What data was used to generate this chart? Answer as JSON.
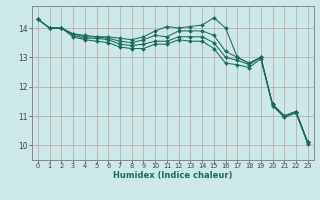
{
  "background_color": "#cce8e8",
  "grid_color": "#bb9999",
  "line_color": "#1a6b5a",
  "xlabel": "Humidex (Indice chaleur)",
  "xlim": [
    -0.5,
    23.5
  ],
  "ylim": [
    9.5,
    14.75
  ],
  "yticks": [
    10,
    11,
    12,
    13,
    14
  ],
  "xticks": [
    0,
    1,
    2,
    3,
    4,
    5,
    6,
    7,
    8,
    9,
    10,
    11,
    12,
    13,
    14,
    15,
    16,
    17,
    18,
    19,
    20,
    21,
    22,
    23
  ],
  "series": [
    [
      14.3,
      14.0,
      14.0,
      13.8,
      13.75,
      13.7,
      13.7,
      13.65,
      13.6,
      13.7,
      13.9,
      14.05,
      14.0,
      14.05,
      14.1,
      14.35,
      14.0,
      13.0,
      12.8,
      13.0,
      11.4,
      11.0,
      11.15,
      10.1
    ],
    [
      14.3,
      14.0,
      14.0,
      13.8,
      13.7,
      13.7,
      13.65,
      13.55,
      13.5,
      13.6,
      13.75,
      13.7,
      13.9,
      13.9,
      13.9,
      13.75,
      13.2,
      13.0,
      12.8,
      13.0,
      11.4,
      11.0,
      11.15,
      10.1
    ],
    [
      14.3,
      14.0,
      14.0,
      13.75,
      13.65,
      13.65,
      13.6,
      13.45,
      13.4,
      13.45,
      13.55,
      13.55,
      13.7,
      13.7,
      13.7,
      13.5,
      13.0,
      12.9,
      12.75,
      13.0,
      11.4,
      11.0,
      11.15,
      10.1
    ],
    [
      14.3,
      14.0,
      14.0,
      13.7,
      13.6,
      13.55,
      13.5,
      13.35,
      13.3,
      13.3,
      13.45,
      13.45,
      13.6,
      13.55,
      13.55,
      13.3,
      12.8,
      12.75,
      12.65,
      12.95,
      11.35,
      10.95,
      11.1,
      10.05
    ]
  ]
}
